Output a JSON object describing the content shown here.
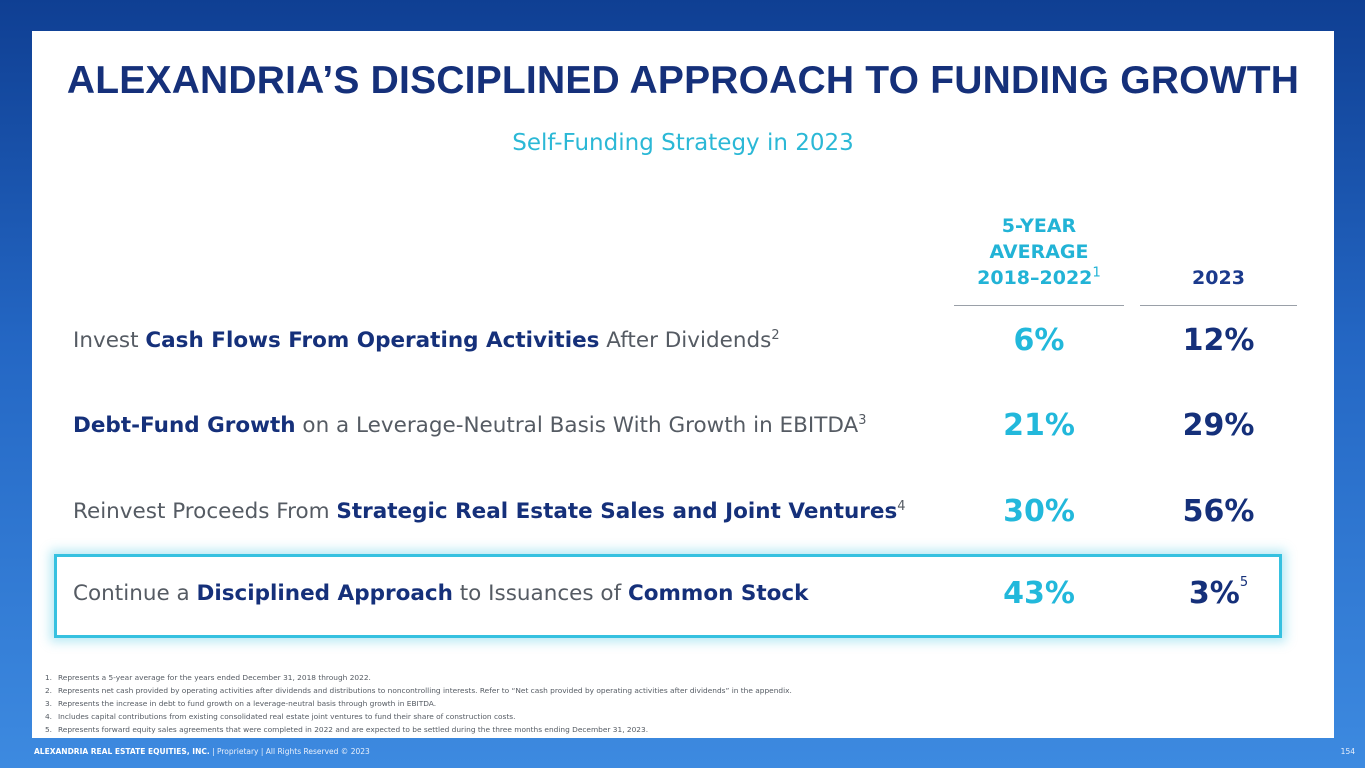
{
  "slide": {
    "title": "ALEXANDRIA’S DISCIPLINED APPROACH TO FUNDING GROWTH",
    "subtitle": "Self-Funding Strategy in 2023"
  },
  "columns": {
    "avg_line1": "5-YEAR",
    "avg_line2": "AVERAGE",
    "avg_line3": "2018–2022",
    "avg_footnote": "1",
    "year": "2023"
  },
  "rows": [
    {
      "parts": [
        {
          "text": "Invest ",
          "bold": false
        },
        {
          "text": "Cash Flows From Operating Activities",
          "bold": true
        },
        {
          "text": " After Dividends",
          "bold": false
        }
      ],
      "footnote": "2",
      "avg": "6%",
      "year": "12%",
      "year_footnote": ""
    },
    {
      "parts": [
        {
          "text": "Debt-Fund Growth",
          "bold": true
        },
        {
          "text": " on a Leverage-Neutral Basis With Growth in EBITDA",
          "bold": false
        }
      ],
      "footnote": "3",
      "avg": "21%",
      "year": "29%",
      "year_footnote": ""
    },
    {
      "parts": [
        {
          "text": "Reinvest Proceeds From ",
          "bold": false
        },
        {
          "text": "Strategic Real Estate Sales and Joint Ventures",
          "bold": true
        }
      ],
      "footnote": "4",
      "avg": "30%",
      "year": "56%",
      "year_footnote": ""
    },
    {
      "parts": [
        {
          "text": "Continue a ",
          "bold": false
        },
        {
          "text": "Disciplined Approach",
          "bold": true
        },
        {
          "text": " to Issuances of ",
          "bold": false
        },
        {
          "text": "Common Stock",
          "bold": true
        }
      ],
      "footnote": "",
      "avg": "43%",
      "year": "3%",
      "year_footnote": "5",
      "highlighted": true
    }
  ],
  "footnotes": [
    {
      "num": "1.",
      "text": "Represents a 5-year average for the years ended December 31, 2018 through 2022."
    },
    {
      "num": "2.",
      "text": "Represents net cash provided by operating activities after dividends and distributions to noncontrolling interests. Refer to “Net cash provided by operating activities after dividends” in the appendix."
    },
    {
      "num": "3.",
      "text": "Represents the increase in debt to fund growth on a leverage-neutral basis through growth in EBITDA."
    },
    {
      "num": "4.",
      "text": "Includes capital contributions from existing consolidated real estate joint ventures to fund their share of construction costs."
    },
    {
      "num": "5.",
      "text": "Represents forward equity sales agreements that were completed in 2022 and are expected to be settled during the three months ending December 31, 2023."
    }
  ],
  "footer": {
    "company": "ALEXANDRIA REAL ESTATE EQUITIES, INC.",
    "notice": " | Proprietary | All Rights Reserved © 2023",
    "page": "154"
  },
  "colors": {
    "navy": "#15307a",
    "cyan": "#22b8db",
    "highlight_border": "#36c1e0"
  }
}
